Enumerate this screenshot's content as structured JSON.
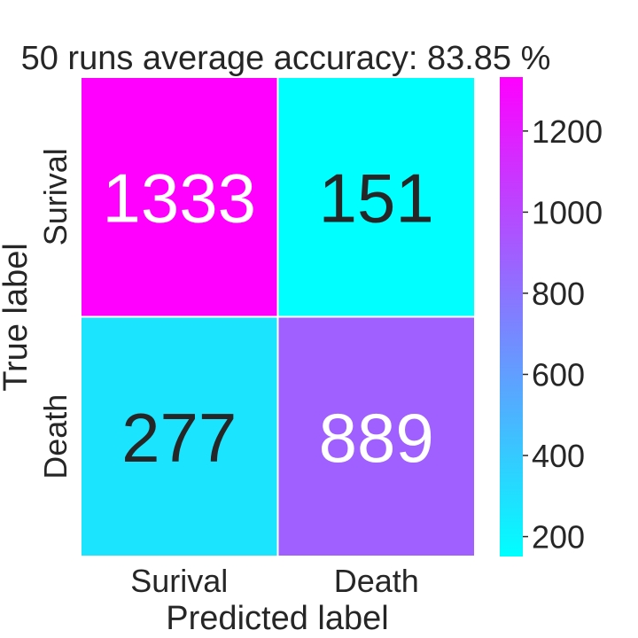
{
  "chart_data": {
    "type": "heatmap",
    "title": "50 runs average accuracy: 83.85 %",
    "xlabel": "Predicted label",
    "ylabel": "True label",
    "x_categories": [
      "Surival",
      "Death"
    ],
    "y_categories": [
      "Surival",
      "Death"
    ],
    "values": [
      [
        1333,
        151
      ],
      [
        277,
        889
      ]
    ],
    "colormap": "cool",
    "colorbar": {
      "range": [
        151,
        1333
      ],
      "ticks": [
        200,
        400,
        600,
        800,
        1000,
        1200
      ]
    },
    "grid": false,
    "colors": {
      "low": "#00ffff",
      "high": "#ff00ff",
      "text_dark": "#262626",
      "text_light": "#ffffff",
      "cell_border": "#ffffff"
    }
  }
}
